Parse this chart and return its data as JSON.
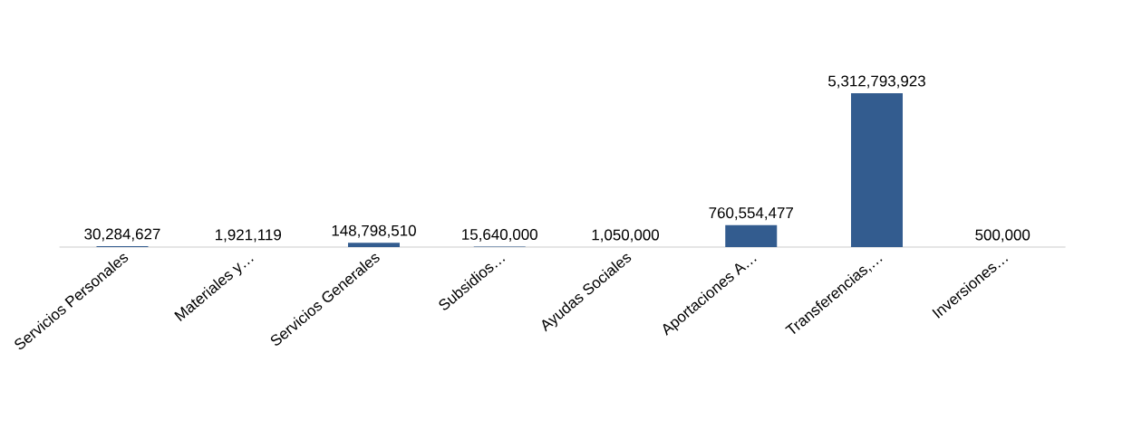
{
  "chart_data": {
    "type": "bar",
    "categories": [
      "Servicios Personales",
      "Materiales y…",
      "Servicios Generales",
      "Subsidios…",
      "Ayudas Sociales",
      "Aportaciones A…",
      "Transferencias,…",
      "Inversiones…"
    ],
    "values": [
      30284627,
      1921119,
      148798510,
      15640000,
      1050000,
      760554477,
      5312793923,
      500000
    ],
    "value_labels": [
      "30,284,627",
      "1,921,119",
      "148,798,510",
      "15,640,000",
      "1,050,000",
      "760,554,477",
      "5,312,793,923",
      "500,000"
    ],
    "color": "#335c8f",
    "tick_labels": "x"
  }
}
